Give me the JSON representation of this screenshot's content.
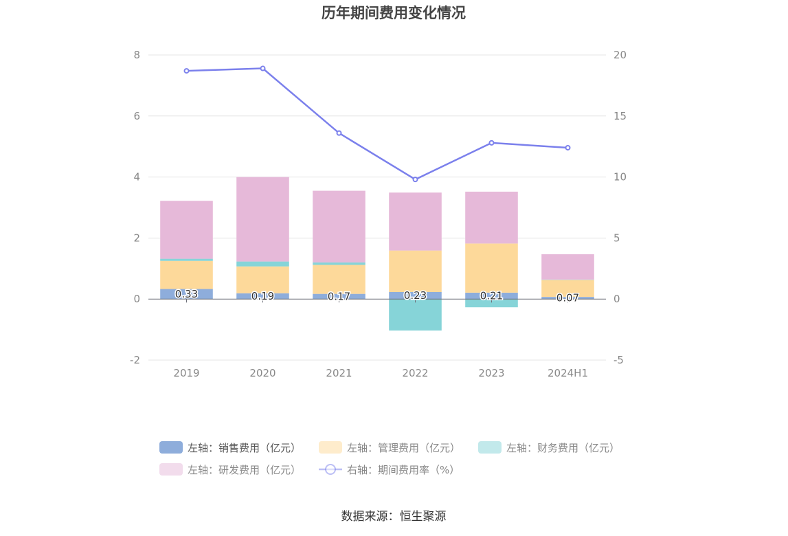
{
  "chart_data": {
    "type": "bar",
    "title": "历年期间费用变化情况",
    "categories": [
      "2019",
      "2020",
      "2021",
      "2022",
      "2023",
      "2024H1"
    ],
    "left_axis": {
      "ylim": [
        -2,
        8
      ],
      "ticks": [
        "-2",
        "0",
        "2",
        "4",
        "6",
        "8"
      ]
    },
    "right_axis": {
      "ylim": [
        -5,
        20
      ],
      "ticks": [
        "-5",
        "0",
        "5",
        "10",
        "15",
        "20"
      ]
    },
    "grid": true,
    "legend_position": "bottom",
    "series": [
      {
        "name": "左轴：销售费用（亿元）",
        "type": "bar",
        "stack": "expense",
        "axis": "left",
        "color": "#8eaddb",
        "values": [
          0.33,
          0.19,
          0.17,
          0.23,
          0.21,
          0.07
        ],
        "labels": [
          "0.33",
          "0.19",
          "0.17",
          "0.23",
          "0.21",
          "0.07"
        ]
      },
      {
        "name": "左轴：管理费用（亿元）",
        "type": "bar",
        "stack": "expense",
        "axis": "left",
        "color": "#fdd99a",
        "values": [
          0.92,
          0.88,
          0.95,
          1.36,
          1.61,
          0.56
        ]
      },
      {
        "name": "左轴：财务费用（亿元）",
        "type": "bar",
        "stack": "expense",
        "axis": "left",
        "color": "#86d4d8",
        "values": [
          0.07,
          0.16,
          0.08,
          -1.03,
          -0.27,
          0.01
        ]
      },
      {
        "name": "左轴：研发费用（亿元）",
        "type": "bar",
        "stack": "expense",
        "axis": "left",
        "color": "#e6b9d9",
        "values": [
          1.9,
          2.77,
          2.35,
          1.9,
          1.7,
          0.83
        ]
      },
      {
        "name": "右轴：期间费用率（%）",
        "type": "line",
        "axis": "right",
        "color": "#7b80ec",
        "values": [
          18.7,
          18.9,
          13.6,
          9.8,
          12.8,
          12.4
        ]
      }
    ],
    "legend_active": [
      true,
      false,
      false,
      false,
      false
    ]
  },
  "source_text": "数据来源：恒生聚源"
}
